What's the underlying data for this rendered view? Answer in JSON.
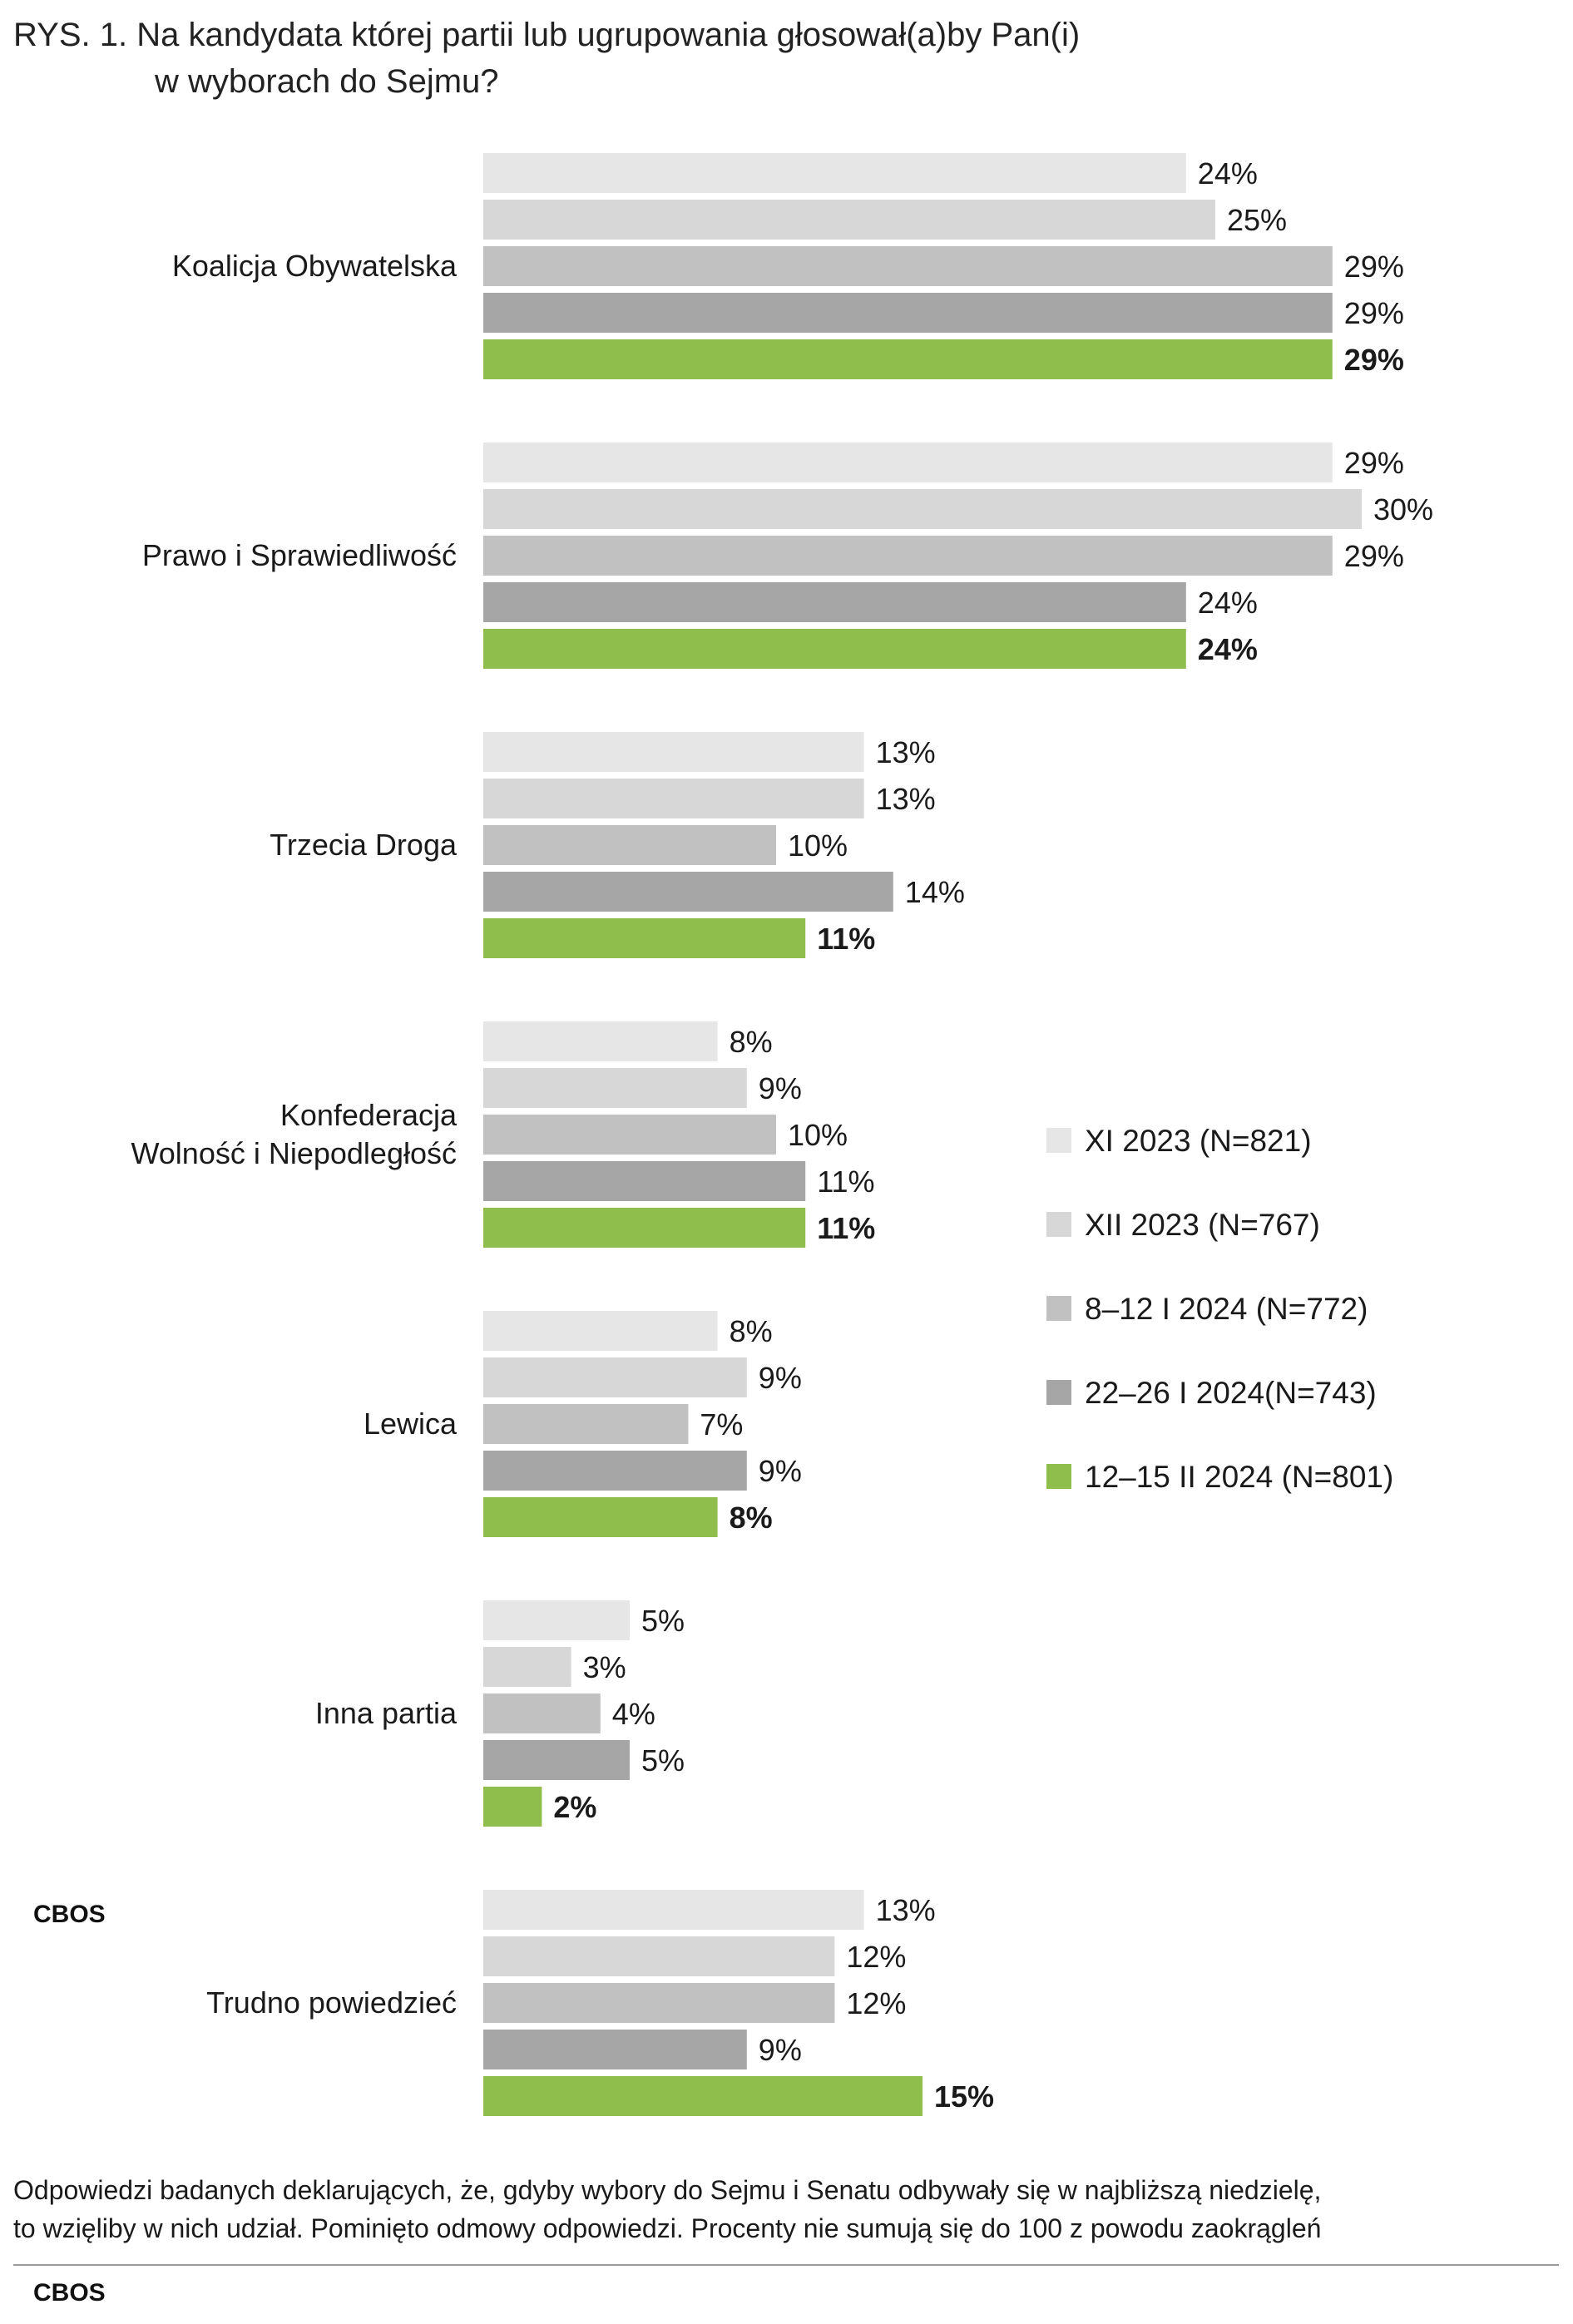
{
  "title": {
    "line1": "RYS. 1. Na kandydata której partii lub ugrupowania głosował(a)by Pan(i)",
    "line2": "w wyborach do Sejmu?"
  },
  "brand": "CBOS",
  "footnote": {
    "line1": "Odpowiedzi badanych deklarujących, że, gdyby wybory do Sejmu i Senatu odbywały się w najbliższą niedzielę,",
    "line2": "to wzięliby w nich udział. Pominięto odmowy odpowiedzi. Procenty nie sumują się do 100 z powodu zaokrągleń"
  },
  "chart_data": {
    "type": "bar",
    "orientation": "horizontal",
    "categories": [
      "Koalicja Obywatelska",
      "Prawo i Sprawiedliwość",
      "Trzecia Droga",
      "Konfederacja\nWolność i Niepodległość",
      "Lewica",
      "Inna partia",
      "Trudno powiedzieć"
    ],
    "series": [
      {
        "name": "XI 2023 (N=821)",
        "color": "#e6e6e6",
        "values": [
          24,
          29,
          13,
          8,
          8,
          5,
          13
        ]
      },
      {
        "name": "XII 2023 (N=767)",
        "color": "#d7d7d7",
        "values": [
          25,
          30,
          13,
          9,
          9,
          3,
          12
        ]
      },
      {
        "name": "8–12 I 2024 (N=772)",
        "color": "#c1c1c1",
        "values": [
          29,
          29,
          10,
          10,
          7,
          4,
          12
        ]
      },
      {
        "name": "22–26 I 2024(N=743)",
        "color": "#a6a6a6",
        "values": [
          29,
          24,
          14,
          11,
          9,
          5,
          9
        ]
      },
      {
        "name": "12–15 II 2024 (N=801)",
        "color": "#8fbe4c",
        "values": [
          29,
          24,
          11,
          11,
          8,
          2,
          15
        ],
        "highlight": true
      }
    ],
    "value_suffix": "%",
    "legend_position": "right",
    "grid": false
  }
}
